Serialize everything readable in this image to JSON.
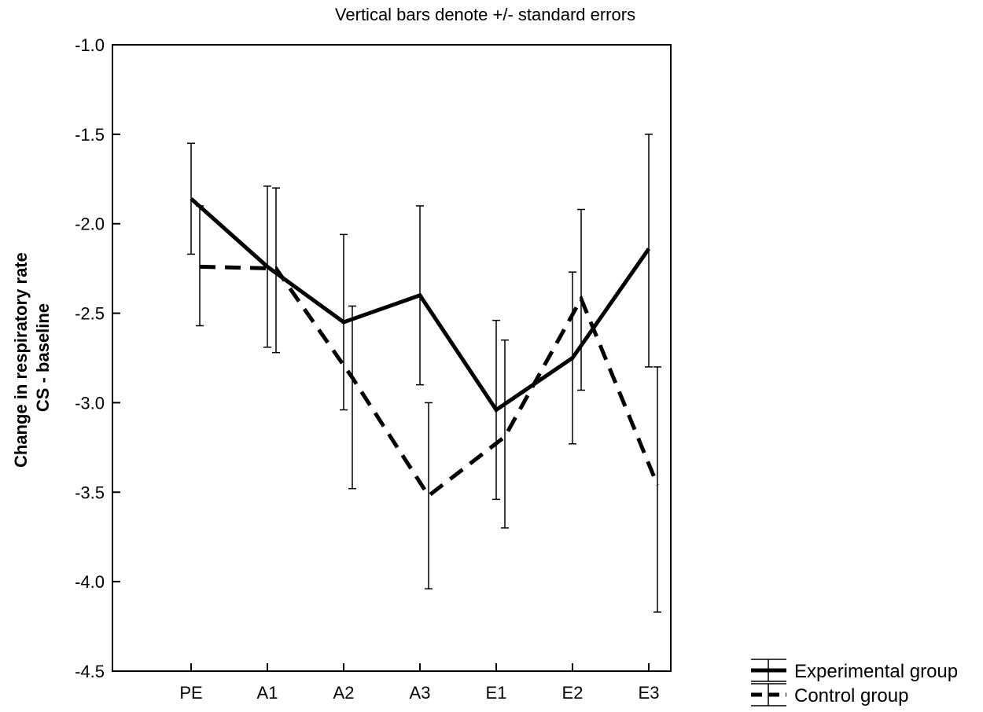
{
  "chart_data": {
    "type": "line",
    "title": "Vertical bars denote +/- standard errors",
    "ylabel_lines": [
      "Change in respiratory rate",
      "CS - baseline"
    ],
    "categories": [
      "PE",
      "A1",
      "A2",
      "A3",
      "E1",
      "E2",
      "E3"
    ],
    "ylim": [
      -4.5,
      -1.0
    ],
    "yticks": [
      -1.0,
      -1.5,
      -2.0,
      -2.5,
      -3.0,
      -3.5,
      -4.0,
      -4.5
    ],
    "ytick_labels": [
      "-1.0",
      "-1.5",
      "-2.0",
      "-2.5",
      "-3.0",
      "-3.5",
      "-4.0",
      "-4.5"
    ],
    "grid": false,
    "legend_position": "bottom-right outside",
    "series": [
      {
        "name": "Experimental group",
        "style": "solid",
        "color": "#000000",
        "values": [
          -1.86,
          -2.24,
          -2.55,
          -2.4,
          -3.04,
          -2.75,
          -2.14
        ],
        "err_upper": [
          -1.55,
          -1.79,
          -2.06,
          -1.9,
          -2.54,
          -2.27,
          -1.5
        ],
        "err_lower": [
          -2.17,
          -2.69,
          -3.04,
          -2.9,
          -3.54,
          -3.23,
          -2.8
        ]
      },
      {
        "name": "Control group",
        "style": "dashed",
        "color": "#000000",
        "values": [
          -2.24,
          -2.25,
          -2.86,
          -3.52,
          -3.19,
          -2.42,
          -3.46
        ],
        "err_upper": [
          -1.9,
          -1.8,
          -2.46,
          -3.0,
          -2.65,
          -1.92,
          -2.8
        ],
        "err_lower": [
          -2.57,
          -2.72,
          -3.48,
          -4.04,
          -3.7,
          -2.93,
          -4.17
        ]
      }
    ]
  }
}
